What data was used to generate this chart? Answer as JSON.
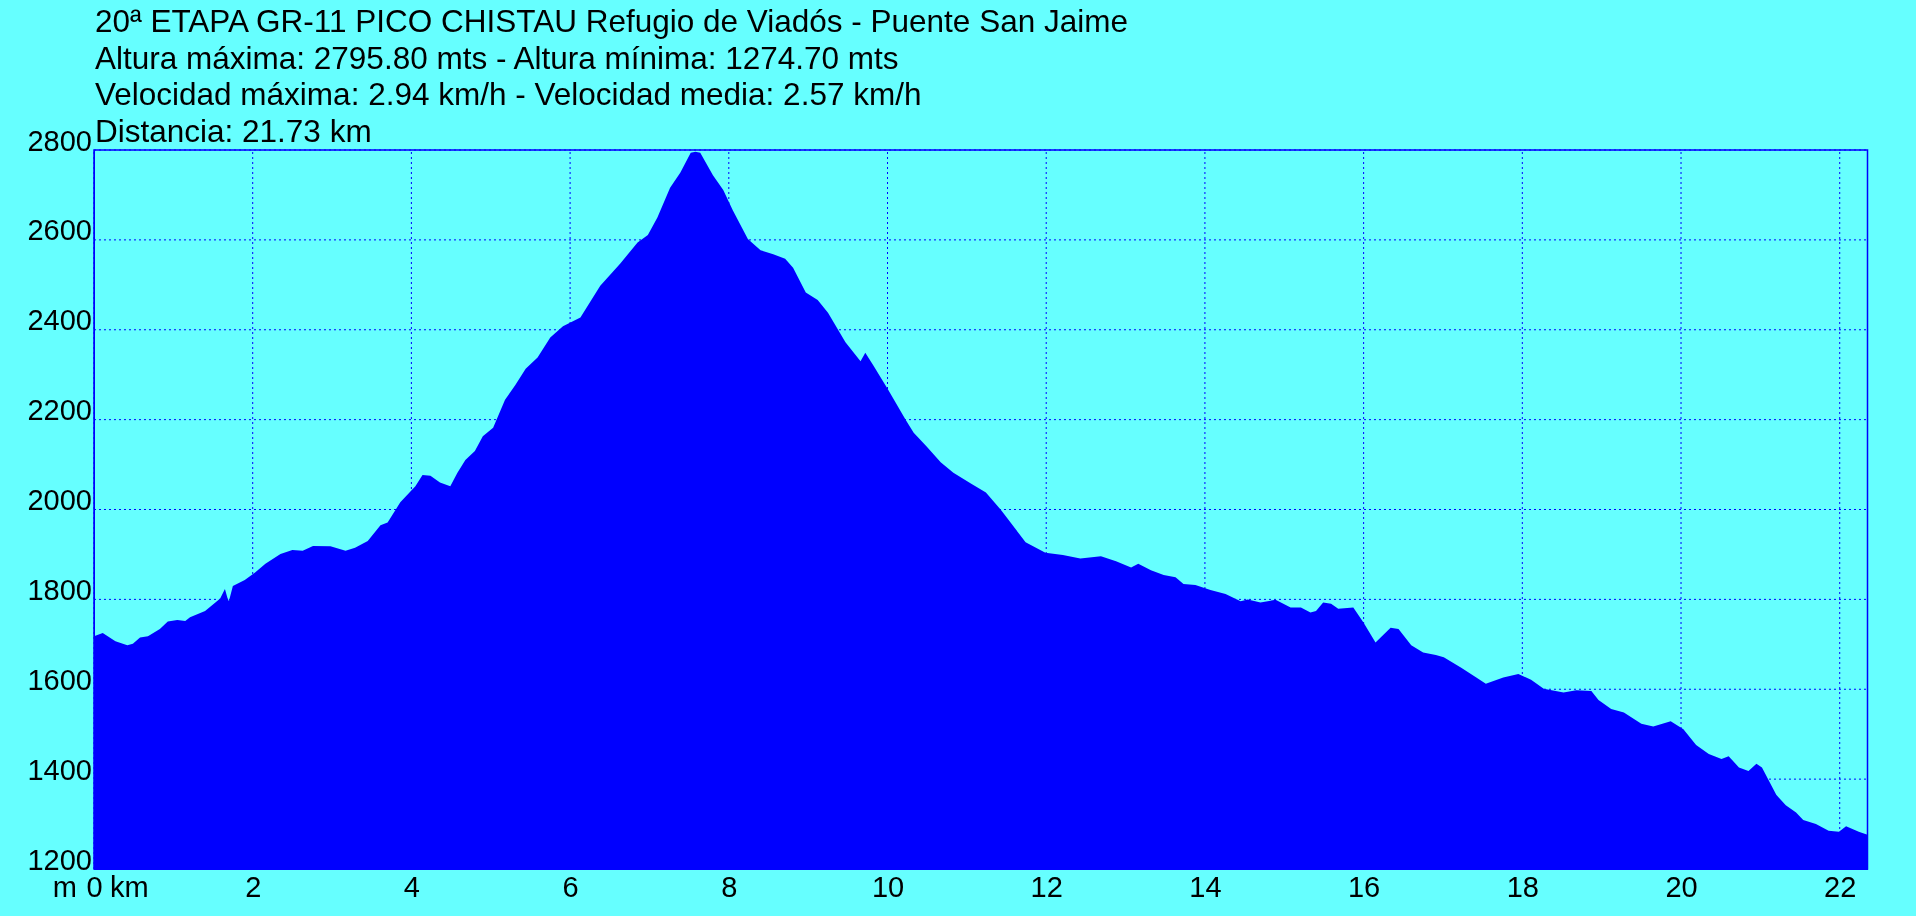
{
  "chart_data": {
    "type": "area",
    "title": "20ª ETAPA GR-11 PICO CHISTAU Refugio de Viadós - Puente San Jaime",
    "subtitle": "Altura máxima: 2795.80 mts - Altura mínima: 1274.70 mts",
    "annotations": [
      "Velocidad máxima: 2.94 km/h - Velocidad media: 2.57 km/h",
      "Distancia: 21.73 km"
    ],
    "xlabel": "km",
    "ylabel": "m",
    "x": [
      0,
      0.11,
      0.27,
      0.42,
      0.49,
      0.58,
      0.68,
      0.83,
      0.93,
      1.05,
      1.15,
      1.21,
      1.4,
      1.53,
      1.59,
      1.65,
      1.68,
      1.7,
      1.75,
      1.9,
      2.03,
      2.16,
      2.35,
      2.5,
      2.63,
      2.76,
      2.98,
      3.17,
      3.29,
      3.45,
      3.61,
      3.7,
      3.86,
      4.05,
      4.14,
      4.24,
      4.36,
      4.49,
      4.58,
      4.68,
      4.8,
      4.9,
      5.03,
      5.18,
      5.31,
      5.44,
      5.59,
      5.75,
      5.91,
      6.13,
      6.38,
      6.63,
      6.85,
      6.98,
      7.1,
      7.26,
      7.39,
      7.52,
      7.58,
      7.64,
      7.8,
      7.93,
      8.05,
      8.24,
      8.4,
      8.56,
      8.71,
      8.81,
      8.97,
      9.12,
      9.25,
      9.47,
      9.66,
      9.72,
      9.82,
      10.01,
      10.23,
      10.33,
      10.49,
      10.67,
      10.83,
      11.05,
      11.24,
      11.43,
      11.74,
      11.99,
      12.21,
      12.43,
      12.69,
      12.88,
      13.07,
      13.16,
      13.32,
      13.48,
      13.63,
      13.73,
      13.88,
      14.07,
      14.26,
      14.45,
      14.54,
      14.7,
      14.89,
      15.08,
      15.21,
      15.33,
      15.4,
      15.49,
      15.59,
      15.68,
      15.87,
      16,
      16.15,
      16.34,
      16.44,
      16.6,
      16.75,
      16.91,
      17.01,
      17.23,
      17.42,
      17.54,
      17.76,
      17.95,
      18.11,
      18.27,
      18.52,
      18.68,
      18.87,
      18.96,
      19.12,
      19.28,
      19.5,
      19.65,
      19.87,
      20.03,
      20.19,
      20.35,
      20.51,
      20.6,
      20.73,
      20.85,
      20.95,
      21.02,
      21.2,
      21.32,
      21.45,
      21.54,
      21.7,
      21.86,
      21.99,
      22.08,
      22.24,
      22.35
    ],
    "values": [
      1718,
      1725,
      1707,
      1698,
      1701,
      1715,
      1718,
      1734,
      1751,
      1754,
      1752,
      1760,
      1774,
      1793,
      1802,
      1823,
      1804,
      1796,
      1830,
      1843,
      1860,
      1879,
      1901,
      1910,
      1908,
      1919,
      1918,
      1908,
      1915,
      1930,
      1965,
      1971,
      2016,
      2052,
      2077,
      2075,
      2060,
      2052,
      2082,
      2110,
      2130,
      2163,
      2182,
      2244,
      2277,
      2313,
      2338,
      2383,
      2408,
      2427,
      2498,
      2547,
      2594,
      2611,
      2650,
      2716,
      2750,
      2794,
      2796,
      2794,
      2744,
      2711,
      2666,
      2602,
      2577,
      2568,
      2558,
      2538,
      2483,
      2466,
      2438,
      2372,
      2330,
      2349,
      2321,
      2266,
      2199,
      2171,
      2141,
      2105,
      2082,
      2058,
      2038,
      1999,
      1927,
      1904,
      1899,
      1891,
      1896,
      1885,
      1871,
      1879,
      1865,
      1854,
      1849,
      1834,
      1832,
      1821,
      1812,
      1796,
      1800,
      1793,
      1799,
      1782,
      1782,
      1771,
      1774,
      1793,
      1790,
      1779,
      1782,
      1748,
      1704,
      1737,
      1734,
      1698,
      1682,
      1676,
      1671,
      1648,
      1626,
      1612,
      1626,
      1634,
      1621,
      1601,
      1593,
      1598,
      1596,
      1576,
      1556,
      1548,
      1523,
      1517,
      1529,
      1511,
      1476,
      1456,
      1445,
      1451,
      1426,
      1418,
      1434,
      1426,
      1365,
      1342,
      1326,
      1309,
      1300,
      1285,
      1283,
      1295,
      1283,
      1276
    ],
    "color": "#0000ff",
    "xlim": [
      0,
      22.35
    ],
    "ylim": [
      1200,
      2800
    ],
    "xticks": [
      0,
      2,
      4,
      6,
      8,
      10,
      12,
      14,
      16,
      18,
      20,
      22
    ],
    "yticks": [
      1200,
      1400,
      1600,
      1800,
      2000,
      2200,
      2400,
      2600,
      2800
    ],
    "grid": true
  }
}
